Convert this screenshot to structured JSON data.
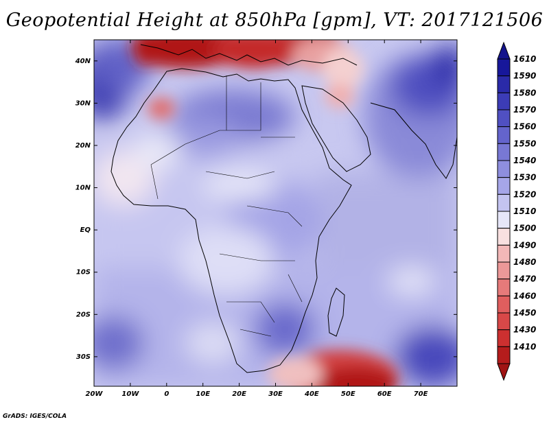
{
  "title": "Geopotential Height at 850hPa [gpm], VT: 2017121506",
  "credit": "GrADS: IGES/COLA",
  "map": {
    "variable": "Geopotential Height",
    "level": "850hPa",
    "units": "gpm",
    "valid_time": "2017121506",
    "region": "Africa",
    "lon_range": [
      -20,
      80
    ],
    "lat_range": [
      -37,
      45
    ],
    "x_ticks": [
      {
        "lon": -20,
        "label": "20W"
      },
      {
        "lon": -10,
        "label": "10W"
      },
      {
        "lon": 0,
        "label": "0"
      },
      {
        "lon": 10,
        "label": "10E"
      },
      {
        "lon": 20,
        "label": "20E"
      },
      {
        "lon": 30,
        "label": "30E"
      },
      {
        "lon": 40,
        "label": "40E"
      },
      {
        "lon": 50,
        "label": "50E"
      },
      {
        "lon": 60,
        "label": "60E"
      },
      {
        "lon": 70,
        "label": "70E"
      }
    ],
    "y_ticks": [
      {
        "lat": 40,
        "label": "40N"
      },
      {
        "lat": 30,
        "label": "30N"
      },
      {
        "lat": 20,
        "label": "20N"
      },
      {
        "lat": 10,
        "label": "10N"
      },
      {
        "lat": 0,
        "label": "EQ"
      },
      {
        "lat": -10,
        "label": "10S"
      },
      {
        "lat": -20,
        "label": "20S"
      },
      {
        "lat": -30,
        "label": "30S"
      }
    ]
  },
  "colorbar": {
    "levels": [
      {
        "label": "1610",
        "color": "#17179a"
      },
      {
        "label": "1590",
        "color": "#2a2aa8"
      },
      {
        "label": "1580",
        "color": "#3c3cb6"
      },
      {
        "label": "1570",
        "color": "#5050c2"
      },
      {
        "label": "1560",
        "color": "#6464cc"
      },
      {
        "label": "1550",
        "color": "#7878d4"
      },
      {
        "label": "1540",
        "color": "#8e8ede"
      },
      {
        "label": "1530",
        "color": "#a6a6e8"
      },
      {
        "label": "1520",
        "color": "#c4c4f0"
      },
      {
        "label": "1510",
        "color": "#e6e6f8"
      },
      {
        "label": "1500",
        "color": "#f8e0e0"
      },
      {
        "label": "1490",
        "color": "#f2b8b8"
      },
      {
        "label": "1480",
        "color": "#ec9898"
      },
      {
        "label": "1470",
        "color": "#e67a7a"
      },
      {
        "label": "1460",
        "color": "#e05e5e"
      },
      {
        "label": "1450",
        "color": "#d84848"
      },
      {
        "label": "1430",
        "color": "#cc3030"
      },
      {
        "label": "1410",
        "color": "#b41c1c"
      }
    ],
    "top_cap_color": "#14148c",
    "bottom_cap_color": "#a01414"
  }
}
